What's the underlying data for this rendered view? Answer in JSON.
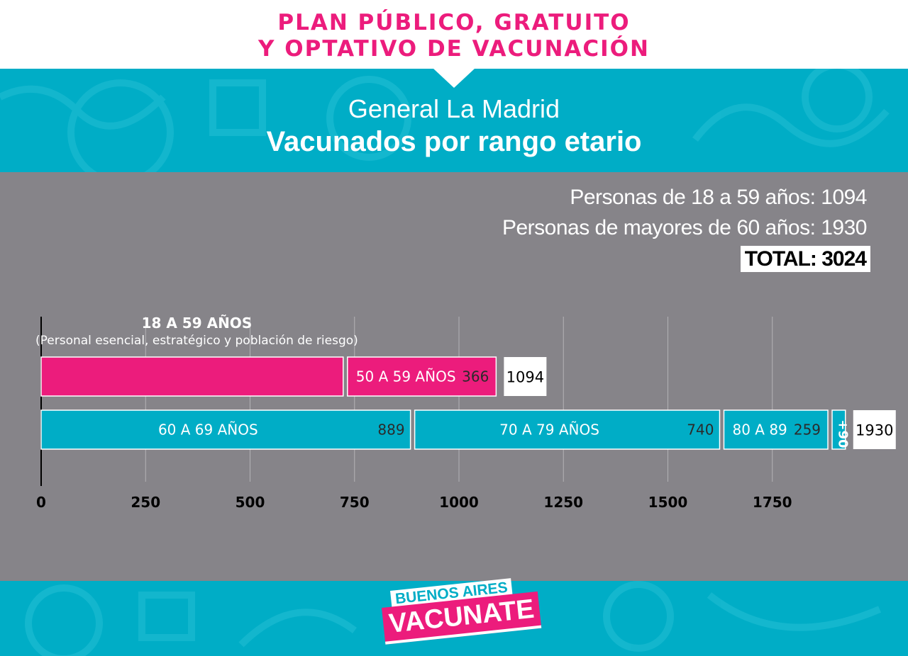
{
  "header": {
    "title_line1": "PLAN PÚBLICO, GRATUITO",
    "title_line2": "Y OPTATIVO DE VACUNACIÓN",
    "location": "General La Madrid",
    "subtitle": "Vacunados por rango etario"
  },
  "summary": {
    "line1": "Personas de 18 a 59 años: 1094",
    "line2": "Personas de mayores de 60 años: 1930",
    "total": "TOTAL: 3024"
  },
  "logo": {
    "line1": "BUENOS AIRES",
    "line2": "VACUNATE"
  },
  "colors": {
    "pink": "#ec1c7c",
    "cyan": "#00adc6",
    "gray": "#868489",
    "white": "#ffffff"
  },
  "chart_data": {
    "type": "bar",
    "orientation": "horizontal",
    "stacked": true,
    "xlim": [
      0,
      2000
    ],
    "x_ticks": [
      0,
      250,
      500,
      750,
      1000,
      1250,
      1500,
      1750
    ],
    "grid": true,
    "rows": [
      {
        "header": "18 A 59 AÑOS",
        "note": "(Personal esencial, estratégico y población de riesgo)",
        "total": 1094,
        "segments": [
          {
            "label": "",
            "value": 728,
            "value_label": ""
          },
          {
            "label": "50 A 59 AÑOS",
            "value": 366,
            "value_label": "366"
          }
        ]
      },
      {
        "header": "",
        "note": "",
        "total": 1930,
        "segments": [
          {
            "label": "60 A 69 AÑOS",
            "value": 889,
            "value_label": "889"
          },
          {
            "label": "70 A 79 AÑOS",
            "value": 740,
            "value_label": "740"
          },
          {
            "label": "80 A 89",
            "value": 259,
            "value_label": "259"
          },
          {
            "label": "+90",
            "value": 42,
            "value_label": ""
          }
        ]
      }
    ]
  }
}
